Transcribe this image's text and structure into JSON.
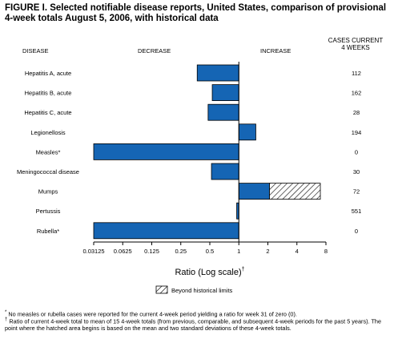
{
  "title": "FIGURE I. Selected notifiable disease reports, United States, comparison of provisional 4-week totals August 5, 2006, with historical data",
  "headers": {
    "disease": "DISEASE",
    "decrease": "DECREASE",
    "increase": "INCREASE",
    "cases_line1": "CASES CURRENT",
    "cases_line2": "4 WEEKS"
  },
  "legend": {
    "label": "Beyond historical limits"
  },
  "footnotes": {
    "f1_symbol": "*",
    "f1": "No measles or rubella cases were reported for the current 4-week period yielding a ratio for week 31 of zero (0).",
    "f2_symbol": "†",
    "f2": "Ratio of current 4-week total to mean of 15 4-week totals (from previous, comparable, and subsequent 4-week periods for the past 5 years). The point where the hatched area begins is based on the mean and two standard deviations of these 4-week totals."
  },
  "colors": {
    "bar": "#1565b4",
    "bar_stroke": "#000000",
    "hatch": "#000000"
  },
  "chart_data": {
    "type": "bar",
    "orientation": "horizontal",
    "xscale": "log2",
    "xlabel": "Ratio (Log scale)",
    "xlabel_sup": "†",
    "xlim": [
      0.03125,
      8
    ],
    "xticks": [
      "0.03125",
      "0.0625",
      "0.125",
      "0.25",
      "0.5",
      "1",
      "2",
      "4",
      "8"
    ],
    "baseline": 1,
    "categories": [
      "Hepatitis A, acute",
      "Hepatitis B, acute",
      "Hepatitis C, acute",
      "Legionellosis",
      "Measles*",
      "Meningococcal disease",
      "Mumps",
      "Pertussis",
      "Rubella*"
    ],
    "values": [
      0.37,
      0.53,
      0.48,
      1.5,
      0.03125,
      0.52,
      7.0,
      0.95,
      0.03125
    ],
    "hatch_start": [
      null,
      null,
      null,
      null,
      null,
      null,
      2.08,
      null,
      null
    ],
    "cases_current_4_weeks": [
      "112",
      "162",
      "28",
      "194",
      "0",
      "30",
      "72",
      "551",
      "0"
    ]
  }
}
